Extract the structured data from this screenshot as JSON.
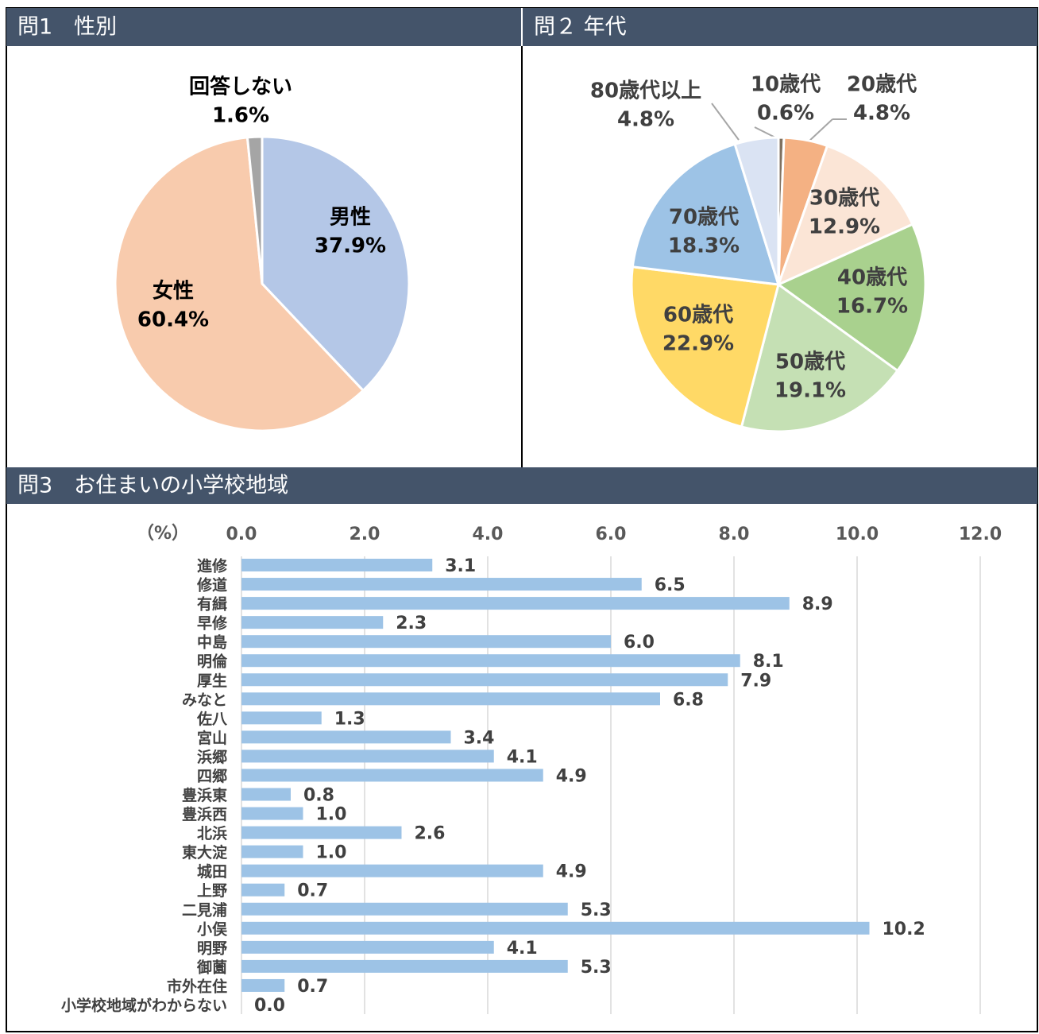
{
  "chart_data": [
    {
      "type": "pie",
      "title": "問1　性別",
      "categories": [
        "男性",
        "女性",
        "回答しない"
      ],
      "values": [
        37.9,
        60.4,
        1.6
      ],
      "value_labels": [
        "37.9%",
        "60.4%",
        "1.6%"
      ],
      "colors": [
        "#b4c7e7",
        "#f8cbad",
        "#a5a5a5"
      ]
    },
    {
      "type": "pie",
      "title": "問２ 年代",
      "categories": [
        "10歳代",
        "20歳代",
        "30歳代",
        "40歳代",
        "50歳代",
        "60歳代",
        "70歳代",
        "80歳代以上"
      ],
      "values": [
        0.6,
        4.8,
        12.9,
        16.7,
        19.1,
        22.9,
        18.3,
        4.8
      ],
      "value_labels": [
        "0.6%",
        "4.8%",
        "12.9%",
        "16.7%",
        "19.1%",
        "22.9%",
        "18.3%",
        "4.8%"
      ],
      "colors": [
        "#7f7160",
        "#f4b183",
        "#fbe5d6",
        "#a9d18e",
        "#c5e0b4",
        "#ffd966",
        "#9dc3e6",
        "#dae3f3"
      ]
    },
    {
      "type": "barh",
      "title": "問3　お住まいの小学校地域",
      "x_label": "（%）",
      "categories": [
        "進修",
        "修道",
        "有緝",
        "早修",
        "中島",
        "明倫",
        "厚生",
        "みなと",
        "佐八",
        "宮山",
        "浜郷",
        "四郷",
        "豊浜東",
        "豊浜西",
        "北浜",
        "東大淀",
        "城田",
        "上野",
        "二見浦",
        "小俣",
        "明野",
        "御薗",
        "市外在住",
        "小学校地域がわからない"
      ],
      "values": [
        3.1,
        6.5,
        8.9,
        2.3,
        6.0,
        8.1,
        7.9,
        6.8,
        1.3,
        3.4,
        4.1,
        4.9,
        0.8,
        1.0,
        2.6,
        1.0,
        4.9,
        0.7,
        5.3,
        10.2,
        4.1,
        5.3,
        0.7,
        0.0
      ],
      "value_labels": [
        "3.1",
        "6.5",
        "8.9",
        "2.3",
        "6.0",
        "8.1",
        "7.9",
        "6.8",
        "1.3",
        "3.4",
        "4.1",
        "4.9",
        "0.8",
        "1.0",
        "2.6",
        "1.0",
        "4.9",
        "0.7",
        "5.3",
        "10.2",
        "4.1",
        "5.3",
        "0.7",
        "0.0"
      ],
      "color": "#9dc3e6",
      "xlim": [
        0,
        12
      ],
      "xticks": [
        {
          "value": 0,
          "label": "0.0"
        },
        {
          "value": 2,
          "label": "2.0"
        },
        {
          "value": 4,
          "label": "4.0"
        },
        {
          "value": 6,
          "label": "6.0"
        },
        {
          "value": 8,
          "label": "8.0"
        },
        {
          "value": 10,
          "label": "10.0"
        },
        {
          "value": 12,
          "label": "12.0"
        }
      ],
      "grid": true
    }
  ]
}
